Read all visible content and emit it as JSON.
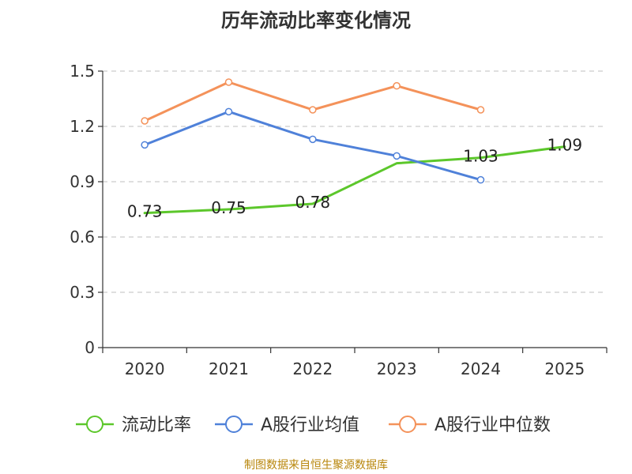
{
  "chart_data": {
    "type": "line",
    "title": "历年流动比率变化情况",
    "categories": [
      "2020",
      "2021",
      "2022",
      "2023",
      "2024",
      "2025"
    ],
    "ylim": [
      0,
      1.5
    ],
    "yticks": [
      "0",
      "0.3",
      "0.6",
      "0.9",
      "1.2",
      "1.5"
    ],
    "ytick_values": [
      0,
      0.3,
      0.6,
      0.9,
      1.2,
      1.5
    ],
    "grid": true,
    "legend_position": "bottom",
    "series": [
      {
        "name": "流动比率",
        "color": "#5cc72b",
        "values": [
          0.73,
          0.75,
          0.78,
          1.0,
          1.03,
          1.09
        ],
        "labels": [
          "0.73",
          "0.75",
          "0.78",
          "",
          "1.03",
          "1.09"
        ],
        "markers": false
      },
      {
        "name": "A股行业均值",
        "color": "#4f81d9",
        "values": [
          1.1,
          1.28,
          1.13,
          1.04,
          0.91,
          null
        ],
        "markers": true
      },
      {
        "name": "A股行业中位数",
        "color": "#f4925a",
        "values": [
          1.23,
          1.44,
          1.29,
          1.42,
          1.29,
          null
        ],
        "markers": true
      }
    ]
  },
  "source": "制图数据来自恒生聚源数据库"
}
